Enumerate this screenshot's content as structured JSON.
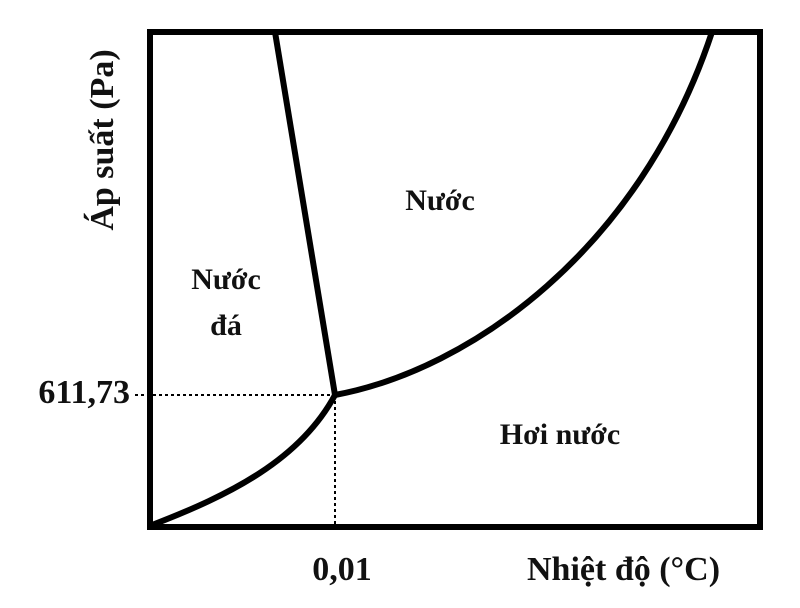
{
  "axes": {
    "y_label": "Áp suất (Pa)",
    "x_label": "Nhiệt độ (°C)"
  },
  "triple_point": {
    "pressure_label": "611,73",
    "temperature_label": "0,01"
  },
  "regions": [
    {
      "lines": [
        "Nước"
      ]
    },
    {
      "lines": [
        "Nước",
        "đá"
      ]
    },
    {
      "lines": [
        "Hơi nước"
      ]
    }
  ]
}
